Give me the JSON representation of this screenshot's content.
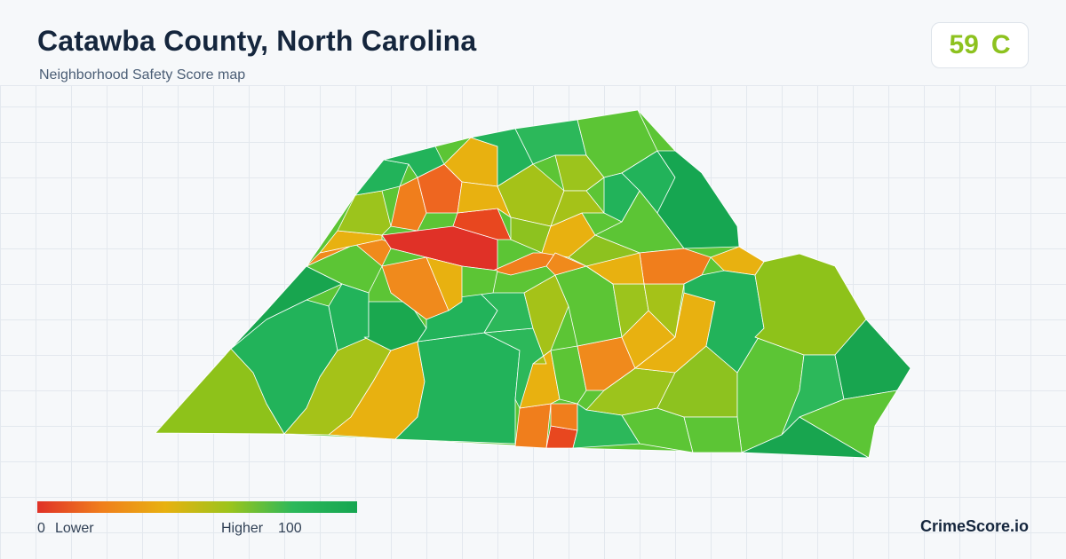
{
  "header": {
    "title": "Catawba County, North Carolina",
    "subtitle": "Neighborhood Safety Score map"
  },
  "score": {
    "value": "59",
    "grade": "C",
    "color": "#8dc21f"
  },
  "legend": {
    "min_value": "0",
    "min_label": "Lower",
    "max_label": "Higher",
    "max_value": "100",
    "colors": [
      "#e03127",
      "#f07e1c",
      "#e8b110",
      "#9cc41c",
      "#2cb85a",
      "#16a651"
    ]
  },
  "brand": {
    "name": "CrimeScore.io"
  },
  "map": {
    "region": "Catawba County",
    "color_scale": {
      "low": "#e03127",
      "mid_low": "#f07e1c",
      "mid": "#e8b110",
      "mid_high": "#a5c218",
      "high": "#22b35a"
    }
  }
}
